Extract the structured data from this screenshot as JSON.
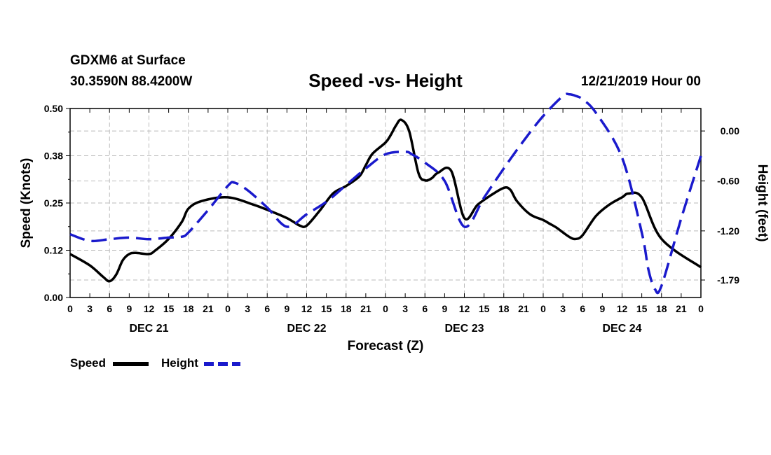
{
  "header": {
    "station": "GDXM6 at Surface",
    "location": "30.3590N 88.4200W",
    "title": "Speed -vs- Height",
    "datetime": "12/21/2019 Hour 00"
  },
  "legend": {
    "speed_label": "Speed",
    "height_label": "Height"
  },
  "colors": {
    "speed": "#000000",
    "height": "#1a1acc",
    "grid": "#bbbbbb"
  },
  "chart_data": {
    "type": "line",
    "title": "Speed -vs- Height",
    "xlabel": "Forecast (Z)",
    "ylabel": "Speed (Knots)",
    "y2label": "Height (feet)",
    "xlim": [
      0,
      96
    ],
    "ylim": [
      0,
      0.5
    ],
    "y2lim": [
      -2.0,
      0.27
    ],
    "y_ticks": [
      "0.00",
      "0.12",
      "0.25",
      "0.38",
      "0.50"
    ],
    "y2_ticks": [
      {
        "value": 0.0,
        "label": "0.00"
      },
      {
        "value": -0.6,
        "label": "-0.60"
      },
      {
        "value": -1.2,
        "label": "-1.20"
      },
      {
        "value": -1.79,
        "label": "-1.79"
      }
    ],
    "x_tick_labels": [
      "0",
      "3",
      "6",
      "9",
      "12",
      "15",
      "18",
      "21",
      "0",
      "3",
      "6",
      "9",
      "12",
      "15",
      "18",
      "21",
      "0",
      "3",
      "6",
      "9",
      "12",
      "15",
      "18",
      "21",
      "0",
      "3",
      "6",
      "9",
      "12",
      "15",
      "18",
      "21",
      "0"
    ],
    "day_labels": [
      {
        "hour": 12,
        "label": "DEC 21"
      },
      {
        "hour": 36,
        "label": "DEC 22"
      },
      {
        "hour": 60,
        "label": "DEC 23"
      },
      {
        "hour": 84,
        "label": "DEC 24"
      }
    ],
    "grid": true,
    "series": [
      {
        "name": "Speed",
        "axis": "left",
        "style": "solid",
        "x": [
          0,
          3,
          5,
          6,
          7,
          8,
          9,
          10,
          12,
          13,
          15,
          17,
          18,
          20,
          24,
          28,
          31,
          33,
          34,
          35,
          36,
          38,
          40,
          42,
          44,
          45,
          46,
          48,
          48.8,
          49.6,
          50.4,
          51.6,
          53,
          54,
          55,
          56,
          58,
          60,
          62,
          64,
          66,
          67,
          68,
          70,
          72,
          73,
          74,
          76,
          77,
          78,
          80,
          82,
          84,
          85,
          87,
          90,
          96
        ],
        "y": [
          0.115,
          0.085,
          0.055,
          0.043,
          0.06,
          0.098,
          0.115,
          0.118,
          0.115,
          0.125,
          0.155,
          0.2,
          0.235,
          0.255,
          0.265,
          0.245,
          0.225,
          0.21,
          0.2,
          0.19,
          0.19,
          0.23,
          0.275,
          0.295,
          0.32,
          0.35,
          0.38,
          0.41,
          0.43,
          0.455,
          0.47,
          0.44,
          0.33,
          0.31,
          0.315,
          0.33,
          0.335,
          0.21,
          0.245,
          0.27,
          0.29,
          0.285,
          0.255,
          0.22,
          0.205,
          0.195,
          0.185,
          0.16,
          0.155,
          0.165,
          0.215,
          0.245,
          0.265,
          0.275,
          0.265,
          0.155,
          0.08
        ]
      },
      {
        "name": "Height",
        "axis": "right",
        "style": "dashed",
        "x": [
          0,
          3,
          6,
          9,
          12,
          15,
          17,
          18,
          21,
          24,
          25,
          27,
          30,
          33,
          36,
          39,
          42,
          45,
          48,
          51,
          52,
          54,
          57,
          60,
          63,
          66,
          69,
          72,
          75,
          76,
          77,
          78,
          80,
          84,
          87,
          88,
          89,
          90,
          93,
          96
        ],
        "y": [
          -1.24,
          -1.32,
          -1.3,
          -1.28,
          -1.3,
          -1.28,
          -1.27,
          -1.22,
          -0.95,
          -0.66,
          -0.62,
          -0.71,
          -0.92,
          -1.15,
          -1.0,
          -0.85,
          -0.65,
          -0.45,
          -0.28,
          -0.25,
          -0.28,
          -0.38,
          -0.6,
          -1.15,
          -0.8,
          -0.45,
          -0.12,
          0.18,
          0.42,
          0.44,
          0.42,
          0.38,
          0.22,
          -0.32,
          -1.22,
          -1.66,
          -1.9,
          -1.86,
          -1.05,
          -0.3
        ]
      }
    ]
  }
}
